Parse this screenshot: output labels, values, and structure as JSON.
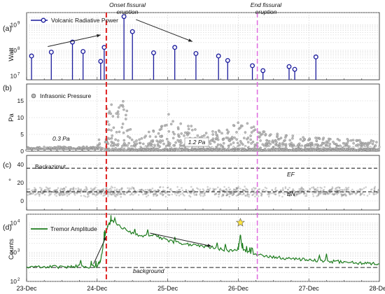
{
  "annotations": {
    "onset_line1": "Onset fissural",
    "onset_line2": "eruption",
    "end_line1": "End fissural",
    "end_line2": "eruption"
  },
  "x_ticks": [
    "23-Dec",
    "24-Dec",
    "25-Dec",
    "26-Dec",
    "27-Dec",
    "28-Dec"
  ],
  "colors": {
    "radiative": "#1a1a9c",
    "infrasonic": "#7a7a7a",
    "tremor": "#1e7d1e",
    "onset_line": "#e02020",
    "end_line": "#e070e0",
    "star": "#ffe640"
  },
  "chart_data": [
    {
      "type": "scatter",
      "panel_label": "(a)",
      "ylabel": "Watt",
      "legend": "Volcanic Radiative Power",
      "yscale": "log",
      "ylim": [
        7000000.0,
        3000000000.0
      ],
      "xlim": [
        0,
        5
      ],
      "y_tick_labels": [
        "10",
        "10",
        "10"
      ],
      "y_tick_exponents": [
        "7",
        "8",
        "9"
      ],
      "x": [
        0.07,
        0.35,
        0.65,
        0.8,
        1.05,
        1.1,
        1.38,
        1.5,
        1.8,
        2.1,
        2.4,
        2.72,
        2.85,
        3.2,
        3.35,
        3.72,
        3.8,
        4.1
      ],
      "y": [
        60000000.0,
        85000000.0,
        210000000.0,
        90000000.0,
        37000000.0,
        130000000.0,
        2100000000.0,
        540000000.0,
        80000000.0,
        130000000.0,
        75000000.0,
        60000000.0,
        40000000.0,
        25000000.0,
        16000000.0,
        23000000.0,
        18000000.0,
        55000000.0
      ]
    },
    {
      "type": "scatter",
      "panel_label": "(b)",
      "ylabel": "Pa",
      "legend": "Infrasonic Pressure",
      "ylim": [
        0,
        20
      ],
      "y_ticks": [
        0,
        5,
        10,
        15
      ],
      "baselines": [
        {
          "label": "0.3 Pa",
          "value": 0.3
        },
        {
          "label": "1.2 Pa",
          "value": 1.2
        }
      ],
      "envelope_x": [
        0,
        0.5,
        1.0,
        1.1,
        1.2,
        1.4,
        1.5,
        1.9,
        2.0,
        2.1,
        2.3,
        2.5,
        2.9,
        3.0,
        3.3,
        3.6,
        4.0,
        4.5,
        5.0
      ],
      "envelope_y": [
        1.0,
        1.2,
        1.1,
        14.0,
        16.0,
        15.0,
        3.0,
        8.0,
        12.0,
        9.0,
        8.0,
        5.0,
        7.0,
        10.0,
        6.0,
        5.0,
        4.0,
        3.5,
        3.0
      ]
    },
    {
      "type": "scatter",
      "panel_label": "(c)",
      "ylabel": "°",
      "legend": "Backazimut",
      "ylim": [
        -10,
        50
      ],
      "y_ticks": [
        0,
        20,
        40
      ],
      "reference_lines": [
        {
          "label": "EF",
          "value": 36
        },
        {
          "label": "BN",
          "value": 10
        }
      ]
    },
    {
      "type": "line",
      "panel_label": "(d)",
      "ylabel": "Counts",
      "legend": "Tremor Amplitude",
      "yscale": "log",
      "ylim": [
        100,
        20000
      ],
      "y_tick_labels": [
        "10",
        "10",
        "10"
      ],
      "y_tick_exponents": [
        "2",
        "3",
        "4"
      ],
      "background_label": "background",
      "background_value": 300,
      "peak_marker_x": 3.03,
      "x": [
        0,
        0.3,
        0.5,
        0.7,
        0.9,
        1.0,
        1.05,
        1.1,
        1.15,
        1.2,
        1.4,
        1.6,
        1.8,
        2.0,
        2.2,
        2.4,
        2.6,
        2.8,
        3.0,
        3.03,
        3.06,
        3.2,
        3.4,
        3.6,
        3.8,
        4.0,
        4.2,
        4.4,
        4.6,
        4.8,
        5.0
      ],
      "y": [
        300,
        320,
        310,
        330,
        320,
        350,
        500,
        3000,
        8000,
        12000,
        6000,
        3500,
        4000,
        2500,
        2000,
        1800,
        1500,
        1200,
        1100,
        4000,
        1200,
        900,
        700,
        650,
        600,
        550,
        500,
        480,
        450,
        420,
        400
      ]
    }
  ]
}
